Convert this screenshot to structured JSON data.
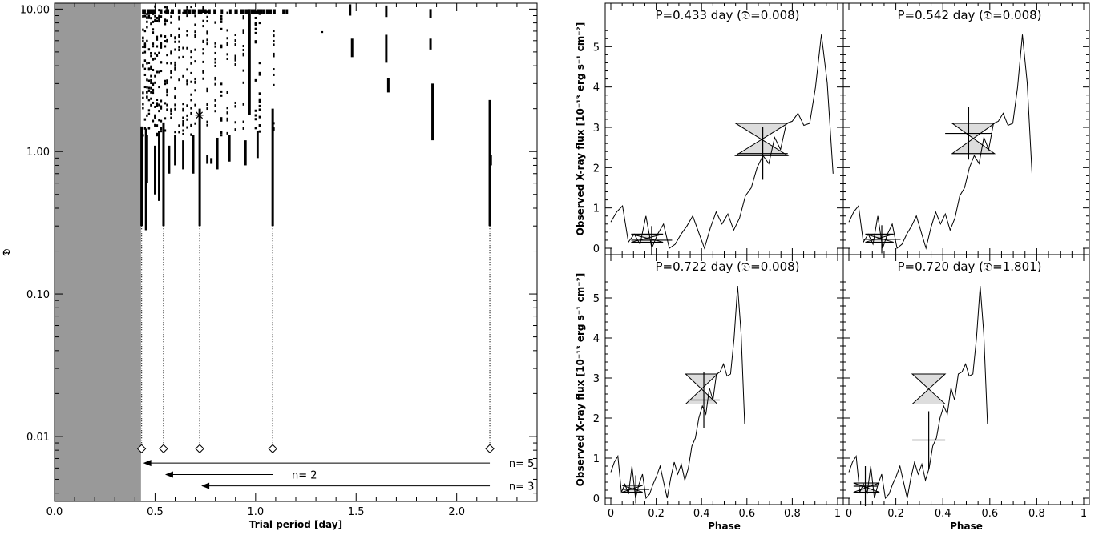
{
  "chart_data": [
    {
      "type": "scatter",
      "xlabel": "Trial period [day]",
      "ylabel": "𝔇",
      "xlim": [
        0.0,
        2.4
      ],
      "ylim": [
        0.0035,
        11
      ],
      "y_scale": "log",
      "x_ticks": [
        "0.0",
        "0.5",
        "1.0",
        "1.5",
        "2.0"
      ],
      "y_ticks": [
        "0.01",
        "0.10",
        "1.00",
        "10.00"
      ],
      "shaded_region": {
        "x": [
          0.0,
          0.43
        ]
      },
      "minima": [
        {
          "period": 0.433,
          "D": 0.0082
        },
        {
          "period": 0.542,
          "D": 0.0082
        },
        {
          "period": 0.722,
          "D": 0.0082
        },
        {
          "period": 1.085,
          "D": 0.0082
        },
        {
          "period": 2.165,
          "D": 0.0082
        }
      ],
      "star_marker": {
        "period": 0.72,
        "D": 1.8
      },
      "harmonics": [
        {
          "label": "n= 5",
          "from": 2.165,
          "to": 0.433,
          "y": 0.0065
        },
        {
          "label": "n= 2",
          "from": 1.085,
          "to": 0.542,
          "y": 0.0054
        },
        {
          "label": "n= 3",
          "from": 2.165,
          "to": 0.722,
          "y": 0.0045
        }
      ]
    },
    {
      "type": "line",
      "panels": [
        {
          "title": "P=0.433 day  (𝔇=0.008)",
          "phase_end": 0.98,
          "boxes": [
            {
              "x": [
                0.09,
                0.23
              ],
              "lo": 0.15,
              "hi": 0.35,
              "ex": 0.14,
              "ey": 0.3
            },
            {
              "x": [
                0.55,
                0.78
              ],
              "lo": 2.3,
              "hi": 3.1,
              "ex": 0.67,
              "ey": 2.8
            }
          ],
          "crosses": [
            {
              "x": 0.18,
              "y": 0.2,
              "dx": 0.09,
              "dy": 0.35
            },
            {
              "x": 0.67,
              "y": 2.35,
              "dx": 0.11,
              "dy": 0.65
            }
          ]
        },
        {
          "title": "P=0.542 day  (𝔇=0.008)",
          "phase_end": 0.78,
          "boxes": [
            {
              "x": [
                0.07,
                0.19
              ],
              "lo": 0.15,
              "hi": 0.35,
              "ex": 0.12,
              "ey": 0.3
            },
            {
              "x": [
                0.44,
                0.62
              ],
              "lo": 2.35,
              "hi": 3.1,
              "ex": 0.55,
              "ey": 2.8
            }
          ],
          "crosses": [
            {
              "x": 0.14,
              "y": 0.22,
              "dx": 0.08,
              "dy": 0.35
            },
            {
              "x": 0.51,
              "y": 2.85,
              "dx": 0.1,
              "dy": 0.65
            }
          ]
        },
        {
          "title": "P=0.722 day  (𝔇=0.008)",
          "phase_end": 0.59,
          "boxes": [
            {
              "x": [
                0.05,
                0.14
              ],
              "lo": 0.15,
              "hi": 0.32,
              "ex": 0.1,
              "ey": 0.3
            },
            {
              "x": [
                0.33,
                0.47
              ],
              "lo": 2.35,
              "hi": 3.1,
              "ex": 0.42,
              "ey": 2.8
            }
          ],
          "crosses": [
            {
              "x": 0.11,
              "y": 0.22,
              "dx": 0.06,
              "dy": 0.35
            },
            {
              "x": 0.41,
              "y": 2.45,
              "dx": 0.07,
              "dy": 0.7
            }
          ]
        },
        {
          "title": "P=0.720 day  (𝔇=1.801)",
          "phase_end": 0.59,
          "boxes": [
            {
              "x": [
                0.02,
                0.13
              ],
              "lo": 0.15,
              "hi": 0.38,
              "ex": 0.05,
              "ey": 0.3
            },
            {
              "x": [
                0.27,
                0.41
              ],
              "lo": 2.35,
              "hi": 3.1,
              "ex": 0.41,
              "ey": 3.1
            }
          ],
          "crosses": [
            {
              "x": 0.07,
              "y": 0.3,
              "dx": 0.05,
              "dy": 0.5
            },
            {
              "x": 0.34,
              "y": 1.45,
              "dx": 0.07,
              "dy": 0.72
            }
          ]
        }
      ],
      "ylabel": "Observed X-ray flux [10⁻¹³ erg s⁻¹ cm⁻²]",
      "xlabel": "Phase",
      "xlim": [
        0,
        1
      ],
      "ylim": [
        -0.1,
        5.9
      ],
      "x_ticks": [
        "0",
        "0.2",
        "0.4",
        "0.6",
        "0.8",
        "1"
      ],
      "y_ticks": [
        "0",
        "1",
        "2",
        "3",
        "4",
        "5"
      ],
      "lightcurve_flux": [
        0.65,
        0.9,
        1.05,
        0.15,
        0.35,
        0.1,
        0.8,
        0.0,
        0.35,
        0.6,
        0.0,
        0.1,
        0.35,
        0.55,
        0.8,
        0.4,
        0.0,
        0.5,
        0.9,
        0.6,
        0.85,
        0.45,
        0.75,
        1.3,
        1.5,
        2.0,
        2.3,
        2.1,
        2.75,
        2.45,
        3.1,
        3.15,
        3.35,
        3.05,
        3.1,
        4.0,
        5.3,
        4.1,
        1.85
      ]
    }
  ]
}
